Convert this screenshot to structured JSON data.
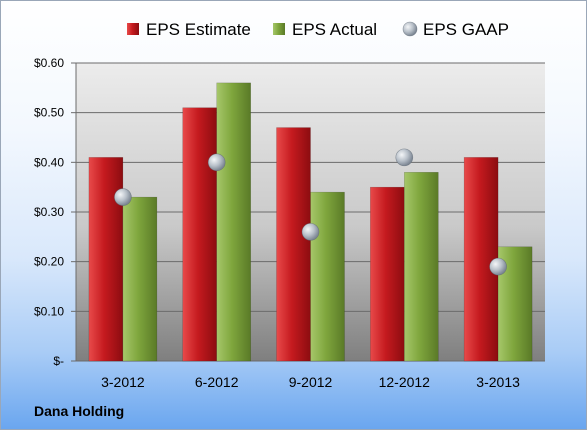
{
  "chart_data": {
    "type": "bar",
    "categories": [
      "3-2012",
      "6-2012",
      "9-2012",
      "12-2012",
      "3-2013"
    ],
    "series": [
      {
        "name": "EPS Estimate",
        "type": "bar",
        "color": "#c0141c",
        "values": [
          0.41,
          0.51,
          0.47,
          0.35,
          0.41
        ]
      },
      {
        "name": "EPS Actual",
        "type": "bar",
        "color": "#7fa63d",
        "values": [
          0.33,
          0.56,
          0.34,
          0.38,
          0.23
        ]
      },
      {
        "name": "EPS GAAP",
        "type": "scatter",
        "color": "#9ea8b4",
        "values": [
          0.33,
          0.4,
          0.26,
          0.41,
          0.19
        ]
      }
    ],
    "ylim": [
      0,
      0.6
    ],
    "yticks": [
      0,
      0.1,
      0.2,
      0.3,
      0.4,
      0.5,
      0.6
    ],
    "ytick_labels": [
      "$-",
      "$0.10",
      "$0.20",
      "$0.30",
      "$0.40",
      "$0.50",
      "$0.60"
    ],
    "grid": true,
    "legend_position": "top"
  },
  "footer_label": "Dana Holding"
}
